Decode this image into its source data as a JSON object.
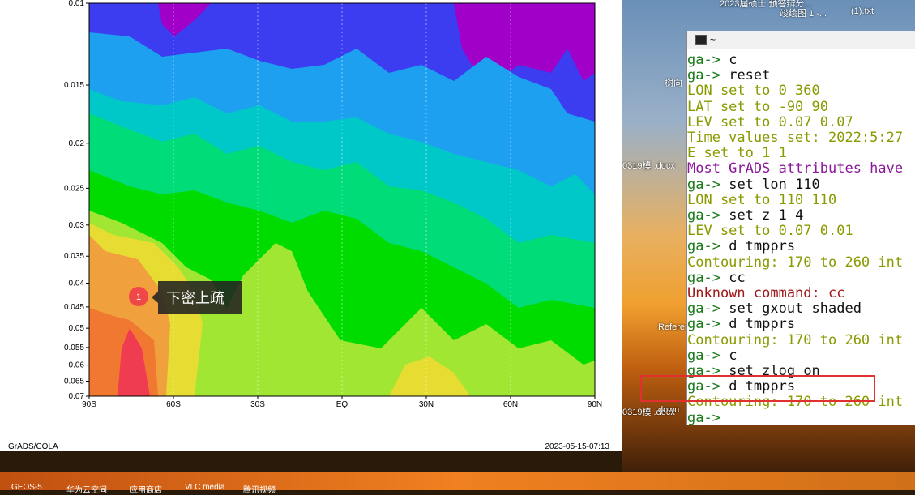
{
  "plot": {
    "yticks": [
      0.01,
      0.015,
      0.02,
      0.025,
      0.03,
      0.035,
      0.04,
      0.045,
      0.05,
      0.055,
      0.06,
      0.065,
      0.07
    ],
    "ylim": [
      0.01,
      0.07
    ],
    "log_scale": true,
    "xtick_labels": [
      "90S",
      "60S",
      "30S",
      "EQ",
      "30N",
      "60N",
      "90N"
    ],
    "footer_left": "GrADS/COLA",
    "footer_right": "2023-05-15-07:13",
    "annotation": {
      "number": "1",
      "text": "下密上疏"
    }
  },
  "terminal": {
    "title": "~",
    "lines": [
      {
        "prompt": "ga->",
        "text": "c"
      },
      {
        "prompt": "ga->",
        "text": "reset"
      },
      {
        "text": "LON set to 0 360",
        "color": "#8a9a00"
      },
      {
        "text": "LAT set to -90 90",
        "color": "#8a9a00"
      },
      {
        "text": "LEV set to 0.07 0.07",
        "color": "#8a9a00"
      },
      {
        "text": "Time values set: 2022:5:27",
        "color": "#8a9a00"
      },
      {
        "text": "E set to 1 1",
        "color": "#8a9a00"
      },
      {
        "text": "Most GrADS attributes have",
        "color": "#8a1a9a"
      },
      {
        "prompt": "ga->",
        "text": "set lon 110"
      },
      {
        "text": "LON set to 110 110",
        "color": "#8a9a00"
      },
      {
        "prompt": "ga->",
        "text": "set z 1 4"
      },
      {
        "text": "LEV set to 0.07 0.01",
        "color": "#8a9a00"
      },
      {
        "prompt": "ga->",
        "text": "d tmpprs"
      },
      {
        "text": "Contouring: 170 to 260 int",
        "color": "#8a9a00"
      },
      {
        "prompt": "ga->",
        "text": "cc"
      },
      {
        "text": "Unknown command: cc",
        "color": "#a01818"
      },
      {
        "prompt": "ga->",
        "text": "set gxout shaded"
      },
      {
        "prompt": "ga->",
        "text": "d tmpprs"
      },
      {
        "text": "Contouring: 170 to 260 int",
        "color": "#8a9a00"
      },
      {
        "prompt": "ga->",
        "text": "c"
      },
      {
        "prompt": "ga->",
        "text": "set zlog on"
      },
      {
        "prompt": "ga->",
        "text": "d tmpprs"
      },
      {
        "text": "Contouring: 170 to 260 int",
        "color": "#8a9a00"
      },
      {
        "prompt": "ga->",
        "text": ""
      }
    ]
  },
  "desktop": {
    "icons": [
      "树向",
      "0319模 .docx",
      "Referen",
      "0319模 .docx",
      "down"
    ],
    "top_labels": [
      "2023届硕士 预答辩分...",
      "竣绘图 1 -...",
      "(1).txt"
    ],
    "taskbar": [
      "GEOS-5",
      "华为云空间",
      "应用商店",
      "VLC media",
      "腾讯视频"
    ]
  }
}
